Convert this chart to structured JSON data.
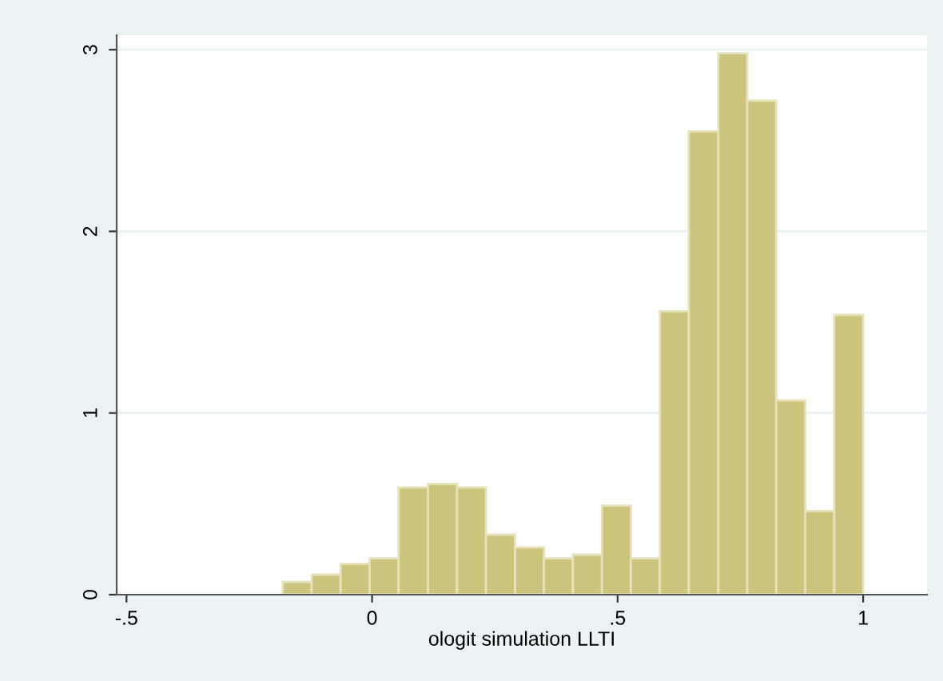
{
  "chart_data": {
    "type": "histogram",
    "xlabel": "ologit simulation LLTI",
    "bins": [
      -0.182,
      -0.123,
      -0.064,
      -0.005,
      0.054,
      0.114,
      0.173,
      0.232,
      0.291,
      0.35,
      0.409,
      0.468,
      0.527,
      0.586,
      0.645,
      0.705,
      0.764,
      0.823,
      0.882,
      0.941,
      1.0
    ],
    "values": [
      0.07,
      0.11,
      0.17,
      0.2,
      0.59,
      0.61,
      0.59,
      0.33,
      0.26,
      0.2,
      0.22,
      0.49,
      0.2,
      1.56,
      2.55,
      2.98,
      2.72,
      1.07,
      0.46,
      1.54
    ],
    "color": "#ccc47c",
    "xlim": [
      -0.52,
      1.13
    ],
    "ylim": [
      0,
      3.08
    ],
    "xticks": [
      {
        "value": -0.5,
        "label": "-.5"
      },
      0,
      {
        "value": 0.5,
        "label": ".5"
      },
      1
    ],
    "yticks": [
      0,
      1,
      2,
      3
    ],
    "grid": "y"
  }
}
